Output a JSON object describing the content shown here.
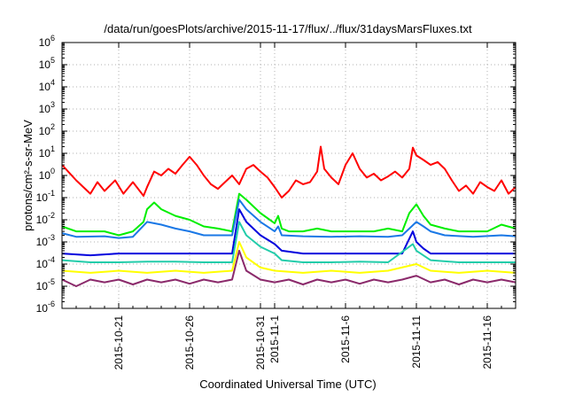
{
  "chart_data": {
    "type": "line",
    "title": "/data/run/goesPlots/archive/2015-11-17/flux/../flux/31daysMarsFluxes.txt",
    "xlabel": "Coordinated Universal Time (UTC)",
    "ylabel": "protons/cm²-s-sr-MeV",
    "yscale": "log",
    "ylim": [
      1e-06,
      1000000.0
    ],
    "y_ticks": [
      {
        "value": 1e-06,
        "base": "10",
        "exp": "-6"
      },
      {
        "value": 1e-05,
        "base": "10",
        "exp": "-5"
      },
      {
        "value": 0.0001,
        "base": "10",
        "exp": "-4"
      },
      {
        "value": 0.001,
        "base": "10",
        "exp": "-3"
      },
      {
        "value": 0.01,
        "base": "10",
        "exp": "-2"
      },
      {
        "value": 0.1,
        "base": "10",
        "exp": "-1"
      },
      {
        "value": 1,
        "base": "10",
        "exp": "0"
      },
      {
        "value": 10.0,
        "base": "10",
        "exp": "1"
      },
      {
        "value": 100.0,
        "base": "10",
        "exp": "2"
      },
      {
        "value": 1000.0,
        "base": "10",
        "exp": "3"
      },
      {
        "value": 10000.0,
        "base": "10",
        "exp": "4"
      },
      {
        "value": 100000.0,
        "base": "10",
        "exp": "5"
      },
      {
        "value": 1000000.0,
        "base": "10",
        "exp": "6"
      }
    ],
    "xlim": [
      "2015-10-17",
      "2015-11-18"
    ],
    "x_ticks": [
      "2015-10-21",
      "2015-10-26",
      "2015-10-31",
      "2015-11-1",
      "2015-11-6",
      "2015-11-11",
      "2015-11-16"
    ],
    "x_tick_dates": [
      "2015-10-21",
      "2015-10-26",
      "2015-10-31",
      "2015-11-01",
      "2015-11-06",
      "2015-11-11",
      "2015-11-16"
    ],
    "grid": true,
    "legend": "none",
    "series": [
      {
        "color": "#ff0000",
        "points": [
          [
            "2015-10-17",
            3
          ],
          [
            "2015-10-18",
            0.6
          ],
          [
            "2015-10-19",
            0.15
          ],
          [
            "2015-10-19T12",
            0.5
          ],
          [
            "2015-10-20",
            0.2
          ],
          [
            "2015-10-20T18",
            0.6
          ],
          [
            "2015-10-21T08",
            0.15
          ],
          [
            "2015-10-22",
            0.5
          ],
          [
            "2015-10-22T18",
            0.12
          ],
          [
            "2015-10-23",
            0.3
          ],
          [
            "2015-10-23T12",
            1.5
          ],
          [
            "2015-10-24",
            1
          ],
          [
            "2015-10-24T12",
            2
          ],
          [
            "2015-10-25",
            1.2
          ],
          [
            "2015-10-25T12",
            3
          ],
          [
            "2015-10-26",
            7
          ],
          [
            "2015-10-26T12",
            3
          ],
          [
            "2015-10-27",
            1
          ],
          [
            "2015-10-27T12",
            0.4
          ],
          [
            "2015-10-28",
            0.25
          ],
          [
            "2015-10-28T12",
            0.5
          ],
          [
            "2015-10-29",
            1
          ],
          [
            "2015-10-29T12",
            0.4
          ],
          [
            "2015-10-30",
            2
          ],
          [
            "2015-10-30T12",
            3
          ],
          [
            "2015-10-31",
            1.5
          ],
          [
            "2015-10-31T12",
            0.8
          ],
          [
            "2015-11-01",
            0.3
          ],
          [
            "2015-11-01T12",
            0.1
          ],
          [
            "2015-11-02",
            0.2
          ],
          [
            "2015-11-02T12",
            0.6
          ],
          [
            "2015-11-03",
            0.4
          ],
          [
            "2015-11-03T12",
            0.5
          ],
          [
            "2015-11-04",
            1.5
          ],
          [
            "2015-11-04T06",
            20
          ],
          [
            "2015-11-04T12",
            2
          ],
          [
            "2015-11-05",
            0.8
          ],
          [
            "2015-11-05T12",
            0.4
          ],
          [
            "2015-11-06",
            3
          ],
          [
            "2015-11-06T12",
            10
          ],
          [
            "2015-11-07",
            2
          ],
          [
            "2015-11-07T12",
            0.8
          ],
          [
            "2015-11-08",
            1.2
          ],
          [
            "2015-11-08T12",
            0.6
          ],
          [
            "2015-11-09",
            0.9
          ],
          [
            "2015-11-09T12",
            1.5
          ],
          [
            "2015-11-10",
            0.8
          ],
          [
            "2015-11-10T12",
            2
          ],
          [
            "2015-11-10T18",
            18
          ],
          [
            "2015-11-11",
            8
          ],
          [
            "2015-11-11T12",
            5
          ],
          [
            "2015-11-12",
            3
          ],
          [
            "2015-11-12T12",
            4
          ],
          [
            "2015-11-13",
            2
          ],
          [
            "2015-11-13T12",
            0.6
          ],
          [
            "2015-11-14",
            0.2
          ],
          [
            "2015-11-14T12",
            0.35
          ],
          [
            "2015-11-15",
            0.15
          ],
          [
            "2015-11-15T12",
            0.5
          ],
          [
            "2015-11-16",
            0.3
          ],
          [
            "2015-11-16T12",
            0.2
          ],
          [
            "2015-11-17",
            0.6
          ],
          [
            "2015-11-17T12",
            0.15
          ],
          [
            "2015-11-18",
            0.3
          ]
        ]
      },
      {
        "color": "#00ee00",
        "points": [
          [
            "2015-10-17",
            0.005
          ],
          [
            "2015-10-18",
            0.003
          ],
          [
            "2015-10-20",
            0.003
          ],
          [
            "2015-10-21",
            0.002
          ],
          [
            "2015-10-22",
            0.003
          ],
          [
            "2015-10-22T18",
            0.008
          ],
          [
            "2015-10-23",
            0.03
          ],
          [
            "2015-10-23T12",
            0.06
          ],
          [
            "2015-10-24",
            0.03
          ],
          [
            "2015-10-25",
            0.015
          ],
          [
            "2015-10-26",
            0.01
          ],
          [
            "2015-10-27",
            0.005
          ],
          [
            "2015-10-28",
            0.004
          ],
          [
            "2015-10-29",
            0.003
          ],
          [
            "2015-10-29T12",
            0.15
          ],
          [
            "2015-10-30",
            0.08
          ],
          [
            "2015-10-31",
            0.02
          ],
          [
            "2015-11-01",
            0.007
          ],
          [
            "2015-11-01T06",
            0.015
          ],
          [
            "2015-11-01T12",
            0.004
          ],
          [
            "2015-11-02",
            0.003
          ],
          [
            "2015-11-03",
            0.003
          ],
          [
            "2015-11-04",
            0.004
          ],
          [
            "2015-11-05",
            0.003
          ],
          [
            "2015-11-06",
            0.003
          ],
          [
            "2015-11-08",
            0.003
          ],
          [
            "2015-11-09",
            0.004
          ],
          [
            "2015-11-10",
            0.003
          ],
          [
            "2015-11-10T12",
            0.02
          ],
          [
            "2015-11-11",
            0.05
          ],
          [
            "2015-11-11T12",
            0.015
          ],
          [
            "2015-11-12",
            0.006
          ],
          [
            "2015-11-13",
            0.004
          ],
          [
            "2015-11-14",
            0.003
          ],
          [
            "2015-11-15",
            0.003
          ],
          [
            "2015-11-16",
            0.003
          ],
          [
            "2015-11-17",
            0.006
          ],
          [
            "2015-11-18",
            0.004
          ]
        ]
      },
      {
        "color": "#1a78e6",
        "points": [
          [
            "2015-10-17",
            0.0025
          ],
          [
            "2015-10-18",
            0.0017
          ],
          [
            "2015-10-20",
            0.0018
          ],
          [
            "2015-10-21",
            0.0015
          ],
          [
            "2015-10-22",
            0.0017
          ],
          [
            "2015-10-23",
            0.008
          ],
          [
            "2015-10-24",
            0.006
          ],
          [
            "2015-10-25",
            0.004
          ],
          [
            "2015-10-26",
            0.003
          ],
          [
            "2015-10-27",
            0.002
          ],
          [
            "2015-10-28",
            0.002
          ],
          [
            "2015-10-29",
            0.002
          ],
          [
            "2015-10-29T12",
            0.08
          ],
          [
            "2015-10-30",
            0.03
          ],
          [
            "2015-10-31",
            0.008
          ],
          [
            "2015-11-01",
            0.003
          ],
          [
            "2015-11-01T06",
            0.005
          ],
          [
            "2015-11-01T12",
            0.002
          ],
          [
            "2015-11-03",
            0.0018
          ],
          [
            "2015-11-05",
            0.0017
          ],
          [
            "2015-11-07",
            0.0018
          ],
          [
            "2015-11-09",
            0.0017
          ],
          [
            "2015-11-10",
            0.002
          ],
          [
            "2015-11-11",
            0.008
          ],
          [
            "2015-11-11T12",
            0.005
          ],
          [
            "2015-11-12",
            0.003
          ],
          [
            "2015-11-13",
            0.002
          ],
          [
            "2015-11-15",
            0.0017
          ],
          [
            "2015-11-17",
            0.002
          ],
          [
            "2015-11-18",
            0.0018
          ]
        ]
      },
      {
        "color": "#0000dd",
        "points": [
          [
            "2015-10-17",
            0.0003
          ],
          [
            "2015-10-19",
            0.00025
          ],
          [
            "2015-10-21",
            0.0003
          ],
          [
            "2015-10-23",
            0.0003
          ],
          [
            "2015-10-25",
            0.0003
          ],
          [
            "2015-10-27",
            0.0003
          ],
          [
            "2015-10-29",
            0.0003
          ],
          [
            "2015-10-29T12",
            0.03
          ],
          [
            "2015-10-30",
            0.008
          ],
          [
            "2015-10-31",
            0.002
          ],
          [
            "2015-11-01",
            0.0008
          ],
          [
            "2015-11-01T12",
            0.0004
          ],
          [
            "2015-11-03",
            0.0003
          ],
          [
            "2015-11-05",
            0.0003
          ],
          [
            "2015-11-07",
            0.0003
          ],
          [
            "2015-11-09",
            0.0003
          ],
          [
            "2015-11-10",
            0.0003
          ],
          [
            "2015-11-10T18",
            0.003
          ],
          [
            "2015-11-11",
            0.001
          ],
          [
            "2015-11-11T12",
            0.0005
          ],
          [
            "2015-11-12",
            0.0003
          ],
          [
            "2015-11-14",
            0.0003
          ],
          [
            "2015-11-16",
            0.0003
          ],
          [
            "2015-11-18",
            0.0003
          ]
        ]
      },
      {
        "color": "#22ccaa",
        "points": [
          [
            "2015-10-17",
            0.00015
          ],
          [
            "2015-10-19",
            0.00012
          ],
          [
            "2015-10-21",
            0.00012
          ],
          [
            "2015-10-23",
            0.00013
          ],
          [
            "2015-10-25",
            0.00013
          ],
          [
            "2015-10-27",
            0.00012
          ],
          [
            "2015-10-29",
            0.00012
          ],
          [
            "2015-10-29T12",
            0.008
          ],
          [
            "2015-10-30",
            0.002
          ],
          [
            "2015-10-31",
            0.0006
          ],
          [
            "2015-11-01",
            0.0003
          ],
          [
            "2015-11-01T12",
            0.00015
          ],
          [
            "2015-11-03",
            0.00012
          ],
          [
            "2015-11-05",
            0.00012
          ],
          [
            "2015-11-07",
            0.00013
          ],
          [
            "2015-11-09",
            0.00012
          ],
          [
            "2015-11-10T18",
            0.0008
          ],
          [
            "2015-11-11",
            0.0004
          ],
          [
            "2015-11-12",
            0.00015
          ],
          [
            "2015-11-14",
            0.00012
          ],
          [
            "2015-11-16",
            0.00012
          ],
          [
            "2015-11-18",
            0.00012
          ]
        ]
      },
      {
        "color": "#ffff00",
        "points": [
          [
            "2015-10-17",
            5e-05
          ],
          [
            "2015-10-19",
            4e-05
          ],
          [
            "2015-10-21",
            5e-05
          ],
          [
            "2015-10-23",
            4e-05
          ],
          [
            "2015-10-25",
            5e-05
          ],
          [
            "2015-10-27",
            4e-05
          ],
          [
            "2015-10-29",
            5e-05
          ],
          [
            "2015-10-29T12",
            0.001
          ],
          [
            "2015-10-30",
            0.0002
          ],
          [
            "2015-10-31",
            7e-05
          ],
          [
            "2015-11-01",
            5e-05
          ],
          [
            "2015-11-03",
            4e-05
          ],
          [
            "2015-11-05",
            5e-05
          ],
          [
            "2015-11-07",
            4e-05
          ],
          [
            "2015-11-09",
            5e-05
          ],
          [
            "2015-11-11",
            0.0001
          ],
          [
            "2015-11-12",
            5e-05
          ],
          [
            "2015-11-14",
            4e-05
          ],
          [
            "2015-11-16",
            5e-05
          ],
          [
            "2015-11-18",
            4e-05
          ]
        ]
      },
      {
        "color": "#8b2a6b",
        "points": [
          [
            "2015-10-17",
            2e-05
          ],
          [
            "2015-10-18",
            1e-05
          ],
          [
            "2015-10-19",
            2e-05
          ],
          [
            "2015-10-20",
            1.5e-05
          ],
          [
            "2015-10-21",
            2e-05
          ],
          [
            "2015-10-22",
            1.2e-05
          ],
          [
            "2015-10-23",
            2e-05
          ],
          [
            "2015-10-24",
            1.5e-05
          ],
          [
            "2015-10-25",
            2e-05
          ],
          [
            "2015-10-26",
            1.3e-05
          ],
          [
            "2015-10-27",
            2e-05
          ],
          [
            "2015-10-28",
            1.5e-05
          ],
          [
            "2015-10-29",
            2e-05
          ],
          [
            "2015-10-29T12",
            0.0004
          ],
          [
            "2015-10-30",
            5e-05
          ],
          [
            "2015-10-31",
            2e-05
          ],
          [
            "2015-11-01",
            1.5e-05
          ],
          [
            "2015-11-02",
            2e-05
          ],
          [
            "2015-11-03",
            1.2e-05
          ],
          [
            "2015-11-04",
            2e-05
          ],
          [
            "2015-11-05",
            1.5e-05
          ],
          [
            "2015-11-06",
            2e-05
          ],
          [
            "2015-11-07",
            1.3e-05
          ],
          [
            "2015-11-08",
            2e-05
          ],
          [
            "2015-11-09",
            1.5e-05
          ],
          [
            "2015-11-10",
            2e-05
          ],
          [
            "2015-11-11",
            3e-05
          ],
          [
            "2015-11-12",
            1.5e-05
          ],
          [
            "2015-11-13",
            2e-05
          ],
          [
            "2015-11-14",
            1.2e-05
          ],
          [
            "2015-11-15",
            2e-05
          ],
          [
            "2015-11-16",
            1.5e-05
          ],
          [
            "2015-11-17",
            2e-05
          ],
          [
            "2015-11-18",
            1.5e-05
          ]
        ]
      }
    ]
  }
}
